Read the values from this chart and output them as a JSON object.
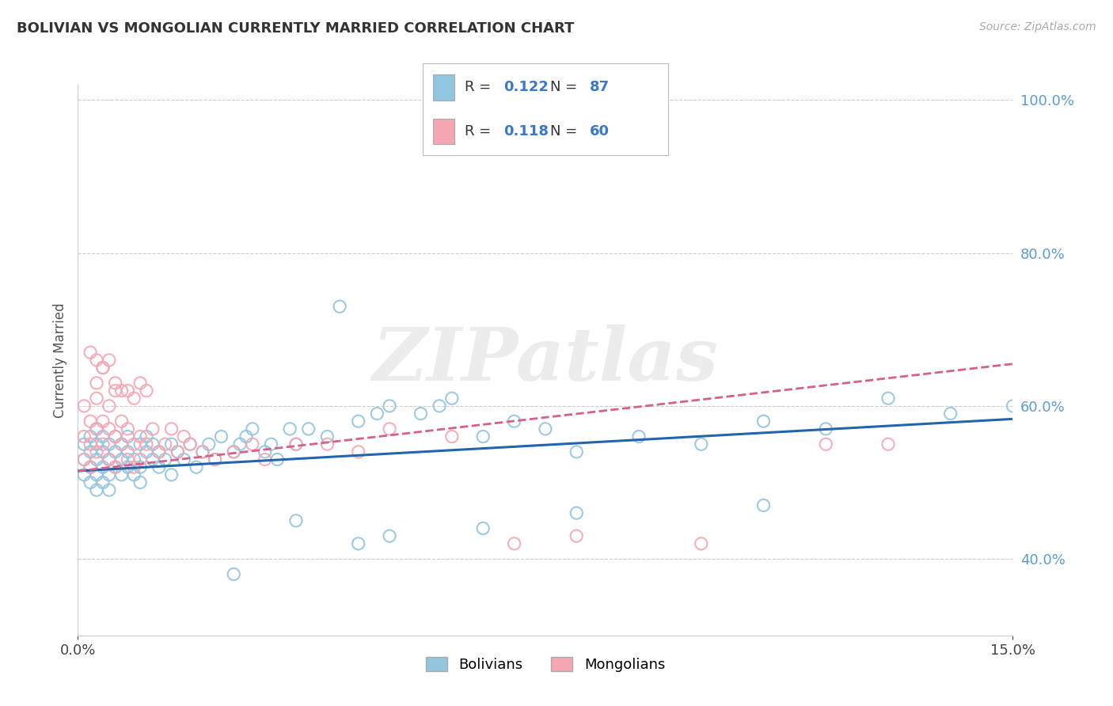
{
  "title": "BOLIVIAN VS MONGOLIAN CURRENTLY MARRIED CORRELATION CHART",
  "source_text": "Source: ZipAtlas.com",
  "ylabel": "Currently Married",
  "xlim": [
    0.0,
    0.15
  ],
  "ylim": [
    0.3,
    1.02
  ],
  "xtick_labels": [
    "0.0%",
    "15.0%"
  ],
  "ytick_labels": [
    "40.0%",
    "60.0%",
    "80.0%",
    "100.0%"
  ],
  "ytick_values": [
    0.4,
    0.6,
    0.8,
    1.0
  ],
  "bolivian_color": "#92c5de",
  "mongolian_color": "#f4a6b2",
  "bolivian_line_color": "#2166ac",
  "mongolian_line_color": "#d6608a",
  "R_bolivian": 0.122,
  "N_bolivian": 87,
  "R_mongolian": 0.118,
  "N_mongolian": 60,
  "watermark": "ZIPatlas",
  "bolivian_trend_x0": 0.0,
  "bolivian_trend_y0": 0.515,
  "bolivian_trend_x1": 0.15,
  "bolivian_trend_y1": 0.583,
  "mongolian_trend_x0": 0.0,
  "mongolian_trend_y0": 0.515,
  "mongolian_trend_x1": 0.15,
  "mongolian_trend_y1": 0.655,
  "bolivian_scatter_x": [
    0.001,
    0.001,
    0.001,
    0.002,
    0.002,
    0.002,
    0.002,
    0.003,
    0.003,
    0.003,
    0.003,
    0.003,
    0.004,
    0.004,
    0.004,
    0.004,
    0.005,
    0.005,
    0.005,
    0.005,
    0.006,
    0.006,
    0.006,
    0.007,
    0.007,
    0.007,
    0.008,
    0.008,
    0.008,
    0.009,
    0.009,
    0.01,
    0.01,
    0.01,
    0.011,
    0.011,
    0.012,
    0.012,
    0.013,
    0.013,
    0.014,
    0.015,
    0.015,
    0.016,
    0.017,
    0.018,
    0.019,
    0.02,
    0.021,
    0.022,
    0.023,
    0.025,
    0.026,
    0.027,
    0.028,
    0.03,
    0.031,
    0.032,
    0.034,
    0.035,
    0.037,
    0.04,
    0.042,
    0.045,
    0.048,
    0.05,
    0.055,
    0.058,
    0.06,
    0.065,
    0.07,
    0.075,
    0.08,
    0.09,
    0.1,
    0.11,
    0.12,
    0.13,
    0.14,
    0.15,
    0.08,
    0.11,
    0.065,
    0.05,
    0.045,
    0.035,
    0.025
  ],
  "bolivian_scatter_y": [
    0.53,
    0.51,
    0.55,
    0.52,
    0.54,
    0.5,
    0.56,
    0.53,
    0.51,
    0.55,
    0.49,
    0.57,
    0.52,
    0.54,
    0.5,
    0.56,
    0.53,
    0.51,
    0.55,
    0.49,
    0.54,
    0.52,
    0.56,
    0.53,
    0.51,
    0.55,
    0.52,
    0.54,
    0.56,
    0.53,
    0.51,
    0.55,
    0.52,
    0.5,
    0.54,
    0.56,
    0.53,
    0.55,
    0.52,
    0.54,
    0.53,
    0.55,
    0.51,
    0.54,
    0.53,
    0.55,
    0.52,
    0.54,
    0.55,
    0.53,
    0.56,
    0.54,
    0.55,
    0.56,
    0.57,
    0.54,
    0.55,
    0.53,
    0.57,
    0.55,
    0.57,
    0.56,
    0.73,
    0.58,
    0.59,
    0.6,
    0.59,
    0.6,
    0.61,
    0.56,
    0.58,
    0.57,
    0.54,
    0.56,
    0.55,
    0.58,
    0.57,
    0.61,
    0.59,
    0.6,
    0.46,
    0.47,
    0.44,
    0.43,
    0.42,
    0.45,
    0.38
  ],
  "mongolian_scatter_x": [
    0.001,
    0.001,
    0.001,
    0.002,
    0.002,
    0.002,
    0.003,
    0.003,
    0.003,
    0.003,
    0.004,
    0.004,
    0.004,
    0.005,
    0.005,
    0.005,
    0.006,
    0.006,
    0.006,
    0.007,
    0.007,
    0.008,
    0.008,
    0.009,
    0.009,
    0.01,
    0.01,
    0.011,
    0.012,
    0.013,
    0.014,
    0.015,
    0.016,
    0.017,
    0.018,
    0.02,
    0.022,
    0.025,
    0.028,
    0.03,
    0.035,
    0.04,
    0.045,
    0.05,
    0.06,
    0.07,
    0.08,
    0.1,
    0.12,
    0.13,
    0.002,
    0.003,
    0.004,
    0.005,
    0.006,
    0.007,
    0.008,
    0.009,
    0.01,
    0.011
  ],
  "mongolian_scatter_y": [
    0.53,
    0.56,
    0.6,
    0.55,
    0.58,
    0.52,
    0.57,
    0.54,
    0.61,
    0.63,
    0.55,
    0.58,
    0.65,
    0.57,
    0.6,
    0.53,
    0.56,
    0.62,
    0.52,
    0.58,
    0.55,
    0.53,
    0.57,
    0.55,
    0.52,
    0.56,
    0.53,
    0.55,
    0.57,
    0.54,
    0.55,
    0.57,
    0.54,
    0.56,
    0.55,
    0.54,
    0.53,
    0.54,
    0.55,
    0.53,
    0.55,
    0.55,
    0.54,
    0.57,
    0.56,
    0.42,
    0.43,
    0.42,
    0.55,
    0.55,
    0.67,
    0.66,
    0.65,
    0.66,
    0.63,
    0.62,
    0.62,
    0.61,
    0.63,
    0.62
  ]
}
